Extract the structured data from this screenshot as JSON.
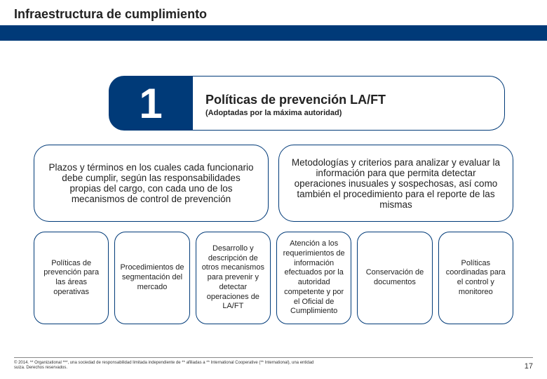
{
  "colors": {
    "brand_blue": "#003a78",
    "text": "#222222",
    "white": "#ffffff",
    "rule": "#888888"
  },
  "header": {
    "title": "Infraestructura de cumplimiento"
  },
  "block1": {
    "number": "1",
    "title": "Políticas de prevención LA/FT",
    "subtitle": "(Adoptadas por la máxima autoridad)"
  },
  "row2": [
    "Plazos y términos en los cuales cada funcionario debe cumplir, según las responsabilidades propias del cargo, con cada uno de los mecanismos de control de prevención",
    "Metodologías y criterios para analizar y evaluar la información para que permita detectar operaciones inusuales y sospechosas, así como también el procedimiento para el reporte de las mismas"
  ],
  "row3": [
    "Políticas de prevención para las áreas operativas",
    "Procedimientos de segmentación del mercado",
    "Desarrollo y descripción de otros mecanismos para prevenir y detectar operaciones de LA/FT",
    "Atención a los requerimientos de información efectuados por la autoridad competente y por el Oficial de Cumplimiento",
    "Conservación de documentos",
    "Políticas coordinadas para el control y monitoreo"
  ],
  "footer": {
    "fineprint": "© 2014. ** Organizational ***, una sociedad de responsabilidad limitada independiente de ** afiliadas a ** International Cooperative (** International), una entidad suiza. Derechos reservados.",
    "page_number": "17"
  }
}
